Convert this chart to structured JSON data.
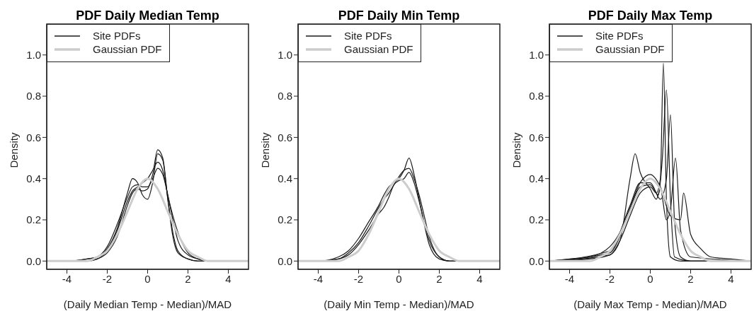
{
  "chart_data": [
    {
      "type": "line",
      "title": "PDF Daily Median Temp",
      "xlabel": "(Daily Median Temp - Median)/MAD",
      "ylabel": "Density",
      "xlim": [
        -5,
        5
      ],
      "xticks": [
        -4,
        -2,
        0,
        2,
        4
      ],
      "ylim": [
        -0.04,
        1.15
      ],
      "yticks": [
        {
          "value": 0,
          "label": "0.0"
        },
        {
          "value": 0.2,
          "label": "0.2"
        },
        {
          "value": 0.4,
          "label": "0.4"
        },
        {
          "value": 0.6,
          "label": "0.6"
        },
        {
          "value": 0.8,
          "label": "0.8"
        },
        {
          "value": 1,
          "label": "1.0"
        }
      ],
      "grid": false,
      "legend": "top left",
      "marker": "none",
      "line_style": "solid",
      "x": [
        -5,
        -4,
        -3,
        -2.5,
        -2,
        -1.5,
        -1,
        -0.75,
        -0.5,
        -0.25,
        0,
        0.25,
        0.5,
        0.75,
        1,
        1.25,
        1.5,
        2,
        2.5,
        3,
        4,
        5
      ],
      "series": [
        {
          "name": "Site PDFs",
          "color": "#1a1a1a",
          "values": [
            0,
            0,
            0.01,
            0.02,
            0.06,
            0.16,
            0.33,
            0.4,
            0.38,
            0.32,
            0.3,
            0.38,
            0.52,
            0.49,
            0.3,
            0.14,
            0.05,
            0.01,
            0,
            0,
            0,
            0
          ]
        },
        {
          "color": "#1a1a1a",
          "values": [
            0,
            0,
            0.01,
            0.02,
            0.07,
            0.18,
            0.31,
            0.36,
            0.37,
            0.36,
            0.36,
            0.4,
            0.45,
            0.42,
            0.32,
            0.2,
            0.1,
            0.03,
            0.01,
            0,
            0,
            0
          ]
        },
        {
          "color": "#1a1a1a",
          "values": [
            0,
            0,
            0,
            0.01,
            0.05,
            0.15,
            0.29,
            0.34,
            0.36,
            0.38,
            0.4,
            0.44,
            0.48,
            0.44,
            0.32,
            0.22,
            0.14,
            0.04,
            0.01,
            0,
            0,
            0
          ]
        },
        {
          "color": "#1a1a1a",
          "values": [
            0,
            0,
            0,
            0.01,
            0.04,
            0.12,
            0.27,
            0.33,
            0.35,
            0.34,
            0.35,
            0.42,
            0.54,
            0.5,
            0.3,
            0.12,
            0.04,
            0.01,
            0,
            0,
            0,
            0
          ]
        },
        {
          "name": "Gaussian PDF",
          "color": "#cccccc",
          "x": [
            -5,
            -4,
            -3,
            -2.5,
            -2,
            -1.5,
            -1,
            -0.5,
            0,
            0.5,
            1,
            1.5,
            2,
            2.5,
            3,
            4,
            5
          ],
          "values": [
            0,
            0,
            0,
            0.02,
            0.05,
            0.13,
            0.24,
            0.35,
            0.4,
            0.35,
            0.24,
            0.13,
            0.05,
            0.02,
            0,
            0,
            0
          ]
        }
      ]
    },
    {
      "type": "line",
      "title": "PDF Daily Min Temp",
      "xlabel": "(Daily Min Temp - Median)/MAD",
      "ylabel": "Density",
      "xlim": [
        -5,
        5
      ],
      "xticks": [
        -4,
        -2,
        0,
        2,
        4
      ],
      "ylim": [
        -0.04,
        1.15
      ],
      "yticks": [
        {
          "value": 0,
          "label": "0.0"
        },
        {
          "value": 0.2,
          "label": "0.2"
        },
        {
          "value": 0.4,
          "label": "0.4"
        },
        {
          "value": 0.6,
          "label": "0.6"
        },
        {
          "value": 0.8,
          "label": "0.8"
        },
        {
          "value": 1,
          "label": "1.0"
        }
      ],
      "grid": false,
      "legend": "top left",
      "marker": "none",
      "line_style": "solid",
      "x": [
        -5,
        -4,
        -3,
        -2.5,
        -2,
        -1.5,
        -1,
        -0.75,
        -0.5,
        -0.25,
        0,
        0.25,
        0.5,
        0.75,
        1,
        1.25,
        1.5,
        2,
        2.5,
        3,
        4,
        5
      ],
      "series": [
        {
          "name": "Site PDFs",
          "color": "#1a1a1a",
          "values": [
            0,
            0,
            0.02,
            0.05,
            0.11,
            0.19,
            0.27,
            0.32,
            0.36,
            0.38,
            0.4,
            0.44,
            0.5,
            0.42,
            0.3,
            0.18,
            0.08,
            0.01,
            0,
            0,
            0,
            0
          ]
        },
        {
          "color": "#1a1a1a",
          "values": [
            0,
            0,
            0.01,
            0.04,
            0.09,
            0.17,
            0.26,
            0.3,
            0.33,
            0.37,
            0.41,
            0.44,
            0.45,
            0.4,
            0.32,
            0.22,
            0.12,
            0.02,
            0,
            0,
            0,
            0
          ]
        },
        {
          "color": "#1a1a1a",
          "values": [
            0,
            0,
            0.01,
            0.03,
            0.08,
            0.15,
            0.23,
            0.26,
            0.31,
            0.37,
            0.39,
            0.4,
            0.43,
            0.38,
            0.29,
            0.19,
            0.1,
            0.02,
            0,
            0,
            0,
            0
          ]
        },
        {
          "name": "Gaussian PDF",
          "color": "#cccccc",
          "x": [
            -5,
            -4,
            -3,
            -2.5,
            -2,
            -1.5,
            -1,
            -0.5,
            0,
            0.5,
            1,
            1.5,
            2,
            2.5,
            3,
            4,
            5
          ],
          "values": [
            0,
            0,
            0,
            0.02,
            0.05,
            0.13,
            0.24,
            0.35,
            0.4,
            0.35,
            0.24,
            0.13,
            0.05,
            0.02,
            0,
            0,
            0
          ]
        }
      ]
    },
    {
      "type": "line",
      "title": "PDF Daily Max Temp",
      "xlabel": "(Daily Max Temp - Median)/MAD",
      "ylabel": "Density",
      "xlim": [
        -5,
        5
      ],
      "xticks": [
        -4,
        -2,
        0,
        2,
        4
      ],
      "ylim": [
        -0.04,
        1.15
      ],
      "yticks": [
        {
          "value": 0,
          "label": "0.0"
        },
        {
          "value": 0.2,
          "label": "0.2"
        },
        {
          "value": 0.4,
          "label": "0.4"
        },
        {
          "value": 0.6,
          "label": "0.6"
        },
        {
          "value": 0.8,
          "label": "0.8"
        },
        {
          "value": 1,
          "label": "1.0"
        }
      ],
      "grid": false,
      "legend": "top left",
      "marker": "none",
      "line_style": "solid",
      "series": [
        {
          "name": "Site PDFs",
          "color": "#1a1a1a",
          "x": [
            -5,
            -2,
            -1.5,
            -1,
            -0.5,
            0,
            0.3,
            0.5,
            0.65,
            0.8,
            1,
            1.5,
            2,
            5
          ],
          "values": [
            0,
            0.03,
            0.1,
            0.22,
            0.33,
            0.36,
            0.33,
            0.4,
            0.96,
            0.3,
            0.02,
            0,
            0,
            0
          ]
        },
        {
          "color": "#1a1a1a",
          "x": [
            -5,
            -2,
            -1.5,
            -1,
            -0.5,
            0,
            0.4,
            0.6,
            0.8,
            1,
            1.2,
            2,
            5
          ],
          "values": [
            0,
            0.04,
            0.12,
            0.25,
            0.36,
            0.37,
            0.32,
            0.5,
            0.83,
            0.3,
            0.02,
            0,
            0
          ]
        },
        {
          "color": "#1a1a1a",
          "x": [
            -5,
            -2,
            -1,
            -0.5,
            0,
            0.5,
            0.8,
            1,
            1.2,
            1.5,
            2,
            5
          ],
          "values": [
            0,
            0.05,
            0.27,
            0.38,
            0.38,
            0.3,
            0.4,
            0.71,
            0.2,
            0.02,
            0,
            0
          ]
        },
        {
          "color": "#1a1a1a",
          "x": [
            -5,
            -3,
            -2,
            -1.5,
            -1,
            -0.75,
            -0.5,
            0,
            0.3,
            0.5,
            0.8,
            1,
            1.25,
            1.5,
            2,
            5
          ],
          "values": [
            0,
            0.01,
            0.03,
            0.1,
            0.4,
            0.52,
            0.43,
            0.35,
            0.3,
            0.35,
            0.2,
            0.25,
            0.5,
            0.15,
            0.02,
            0
          ]
        },
        {
          "color": "#1a1a1a",
          "x": [
            -5,
            -4,
            -3,
            -2,
            -1.5,
            -1,
            -0.5,
            0,
            0.5,
            1,
            1.5,
            1.65,
            2,
            2.5,
            3,
            4,
            5
          ],
          "values": [
            0,
            0.01,
            0.02,
            0.07,
            0.14,
            0.26,
            0.38,
            0.42,
            0.36,
            0.22,
            0.2,
            0.33,
            0.13,
            0.06,
            0.02,
            0.01,
            0
          ]
        },
        {
          "name": "Gaussian PDF",
          "color": "#cccccc",
          "x": [
            -5,
            -4,
            -3,
            -2.5,
            -2,
            -1.5,
            -1,
            -0.5,
            0,
            0.5,
            1,
            1.5,
            2,
            2.5,
            3,
            4,
            5
          ],
          "values": [
            0,
            0,
            0,
            0.02,
            0.05,
            0.13,
            0.24,
            0.35,
            0.4,
            0.35,
            0.24,
            0.13,
            0.05,
            0.02,
            0,
            0,
            0
          ]
        }
      ]
    }
  ]
}
